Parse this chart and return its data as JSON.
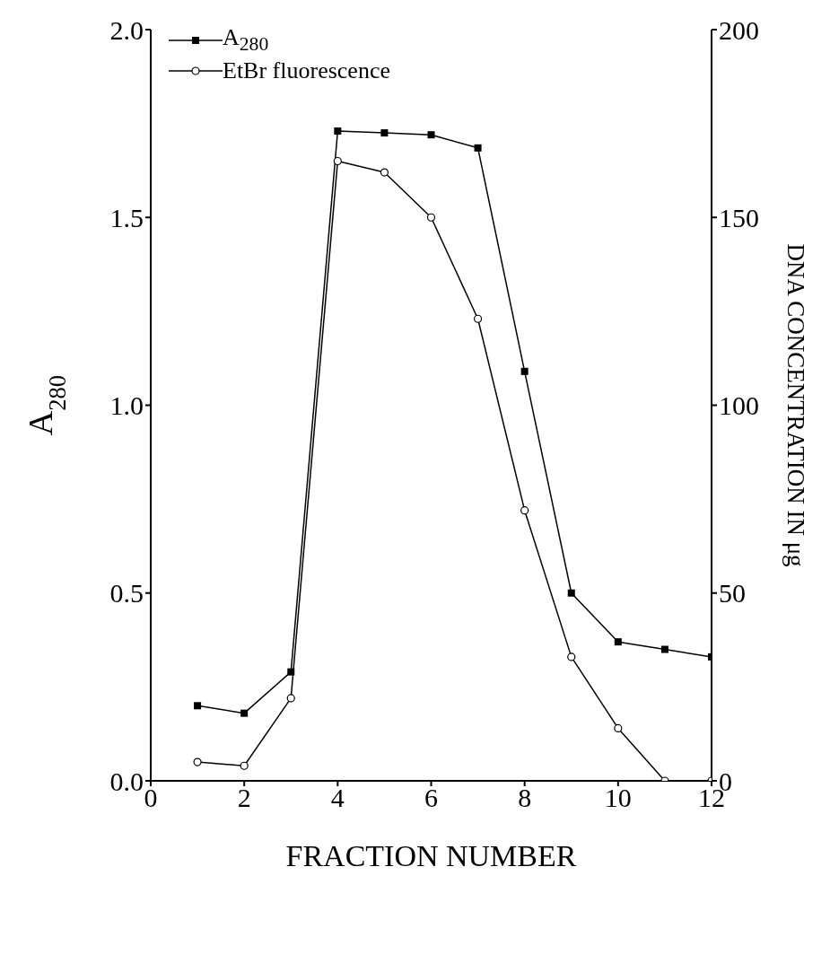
{
  "chart_data": {
    "type": "line",
    "xlabel": "FRACTION NUMBER",
    "ylabel": "A$_{280}$",
    "y2label": "DNA CONCENTRATION IN μg",
    "x": [
      1,
      2,
      3,
      4,
      5,
      6,
      7,
      8,
      9,
      10,
      11,
      12
    ],
    "series": [
      {
        "name": "A$_{280}$",
        "color": "#000000",
        "marker": "square",
        "values": [
          0.2,
          0.18,
          0.29,
          1.73,
          1.725,
          1.72,
          1.685,
          1.09,
          0.5,
          0.37,
          0.35,
          0.33
        ]
      },
      {
        "name": "EtBr fluorescence",
        "color": "#000000",
        "marker": "circle",
        "axis": "y2",
        "values": [
          5,
          4,
          22,
          165,
          162,
          150,
          123,
          72,
          33,
          14,
          0,
          0
        ]
      }
    ],
    "xlim": [
      0,
      12
    ],
    "xticks": [
      0,
      2,
      4,
      6,
      8,
      10,
      12
    ],
    "ylim": [
      0,
      2
    ],
    "yticks": [
      {
        "value": 0,
        "label": "0.0"
      },
      {
        "value": 0.5,
        "label": "0.5"
      },
      {
        "value": 1,
        "label": "1.0"
      },
      {
        "value": 1.5,
        "label": "1.5"
      },
      {
        "value": 2,
        "label": "2.0"
      }
    ],
    "y2lim": [
      0,
      200
    ],
    "y2ticks": [
      0,
      50,
      100,
      150,
      200
    ],
    "legend": "top left",
    "grid": false,
    "line_style": "solid"
  }
}
